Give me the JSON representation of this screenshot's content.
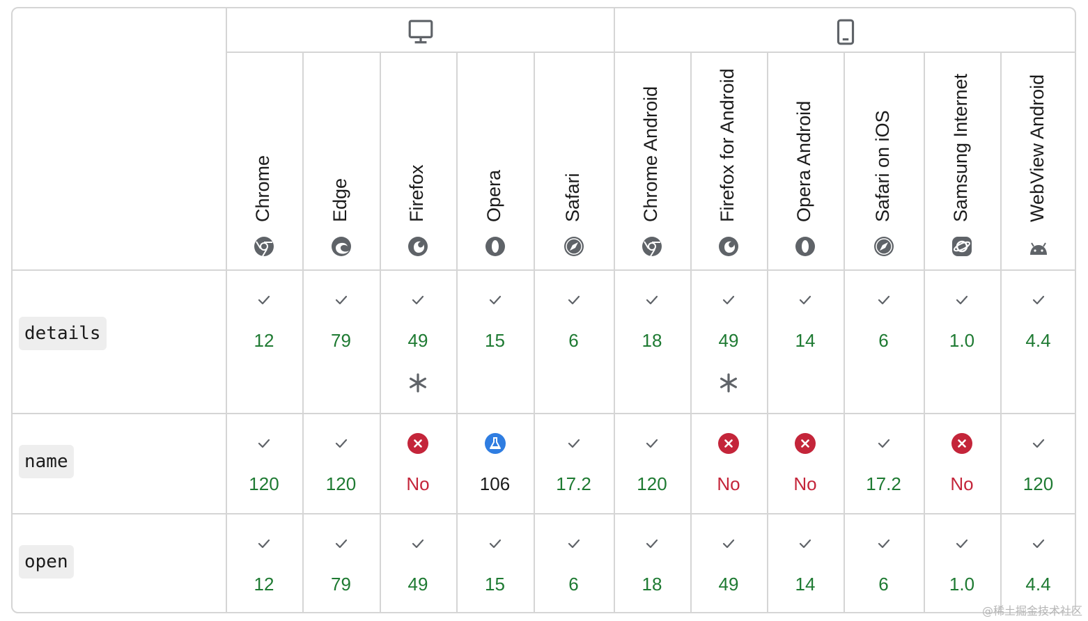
{
  "platforms": [
    {
      "name": "desktop",
      "icon": "desktop-icon"
    },
    {
      "name": "mobile",
      "icon": "mobile-icon"
    }
  ],
  "browsers": [
    {
      "name": "Chrome",
      "logo": "chrome-logo-icon",
      "platform": "desktop"
    },
    {
      "name": "Edge",
      "logo": "edge-logo-icon",
      "platform": "desktop"
    },
    {
      "name": "Firefox",
      "logo": "firefox-logo-icon",
      "platform": "desktop"
    },
    {
      "name": "Opera",
      "logo": "opera-logo-icon",
      "platform": "desktop"
    },
    {
      "name": "Safari",
      "logo": "safari-logo-icon",
      "platform": "desktop"
    },
    {
      "name": "Chrome Android",
      "logo": "chrome-logo-icon",
      "platform": "mobile"
    },
    {
      "name": "Firefox for Android",
      "logo": "firefox-logo-icon",
      "platform": "mobile"
    },
    {
      "name": "Opera Android",
      "logo": "opera-logo-icon",
      "platform": "mobile"
    },
    {
      "name": "Safari on iOS",
      "logo": "safari-logo-icon",
      "platform": "mobile"
    },
    {
      "name": "Samsung Internet",
      "logo": "samsung-internet-logo-icon",
      "platform": "mobile"
    },
    {
      "name": "WebView Android",
      "logo": "android-logo-icon",
      "platform": "mobile"
    }
  ],
  "features": [
    {
      "name": "details",
      "cells": [
        {
          "status": "yes",
          "value": "12"
        },
        {
          "status": "yes",
          "value": "79"
        },
        {
          "status": "yes",
          "value": "49",
          "note": "asterisk"
        },
        {
          "status": "yes",
          "value": "15"
        },
        {
          "status": "yes",
          "value": "6"
        },
        {
          "status": "yes",
          "value": "18"
        },
        {
          "status": "yes",
          "value": "49",
          "note": "asterisk"
        },
        {
          "status": "yes",
          "value": "14"
        },
        {
          "status": "yes",
          "value": "6"
        },
        {
          "status": "yes",
          "value": "1.0"
        },
        {
          "status": "yes",
          "value": "4.4"
        }
      ]
    },
    {
      "name": "name",
      "cells": [
        {
          "status": "yes",
          "value": "120"
        },
        {
          "status": "yes",
          "value": "120"
        },
        {
          "status": "no",
          "value": "No"
        },
        {
          "status": "experimental",
          "value": "106"
        },
        {
          "status": "yes",
          "value": "17.2"
        },
        {
          "status": "yes",
          "value": "120"
        },
        {
          "status": "no",
          "value": "No"
        },
        {
          "status": "no",
          "value": "No"
        },
        {
          "status": "yes",
          "value": "17.2"
        },
        {
          "status": "no",
          "value": "No"
        },
        {
          "status": "yes",
          "value": "120"
        }
      ]
    },
    {
      "name": "open",
      "cells": [
        {
          "status": "yes",
          "value": "12"
        },
        {
          "status": "yes",
          "value": "79"
        },
        {
          "status": "yes",
          "value": "49"
        },
        {
          "status": "yes",
          "value": "15"
        },
        {
          "status": "yes",
          "value": "6"
        },
        {
          "status": "yes",
          "value": "18"
        },
        {
          "status": "yes",
          "value": "49"
        },
        {
          "status": "yes",
          "value": "14"
        },
        {
          "status": "yes",
          "value": "6"
        },
        {
          "status": "yes",
          "value": "1.0"
        },
        {
          "status": "yes",
          "value": "4.4"
        }
      ]
    }
  ],
  "colors": {
    "supported": "#1e7a32",
    "unsupported": "#c4253a",
    "experimental": "#2f7de1",
    "border": "#d5d5d5",
    "icon_gray": "#5f6368"
  },
  "watermark": "@稀土掘金技术社区"
}
